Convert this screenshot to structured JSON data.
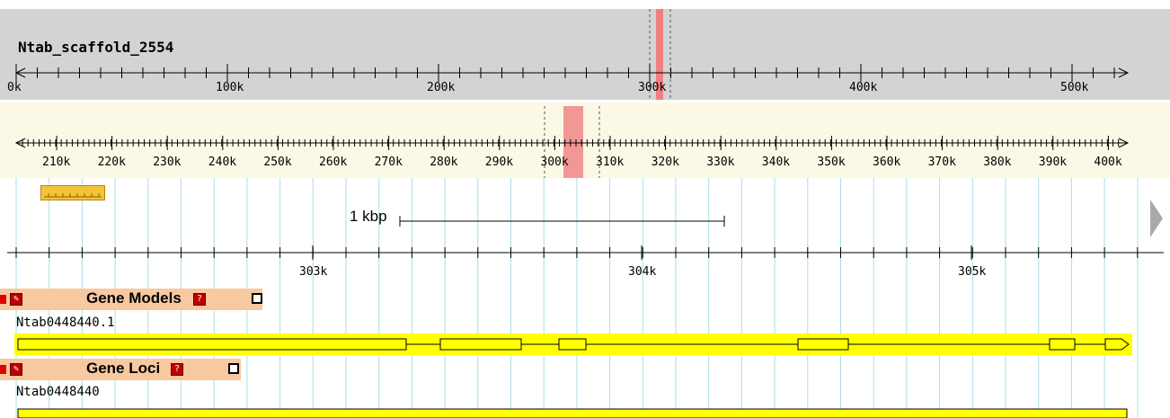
{
  "overview": {
    "scaffold_name": "Ntab_scaffold_2554",
    "ticks": [
      "0k",
      "100k",
      "200k",
      "300k",
      "400k",
      "500k"
    ]
  },
  "region": {
    "ticks": [
      "210k",
      "220k",
      "230k",
      "240k",
      "250k",
      "260k",
      "270k",
      "280k",
      "290k",
      "300k",
      "310k",
      "320k",
      "330k",
      "340k",
      "350k",
      "360k",
      "370k",
      "380k",
      "390k",
      "400k"
    ]
  },
  "detail": {
    "scale_label": "1 kbp",
    "ticks": [
      "303k",
      "304k",
      "305k"
    ],
    "colors": {
      "track_label_bg": "#f8c8a0",
      "feature_fill": "#ffff00",
      "highlight": "#f08080"
    },
    "tracks": [
      {
        "title": "Gene Models",
        "feature_name": "Ntab0448440.1"
      },
      {
        "title": "Gene Loci",
        "feature_name": "Ntab0448440"
      }
    ]
  }
}
